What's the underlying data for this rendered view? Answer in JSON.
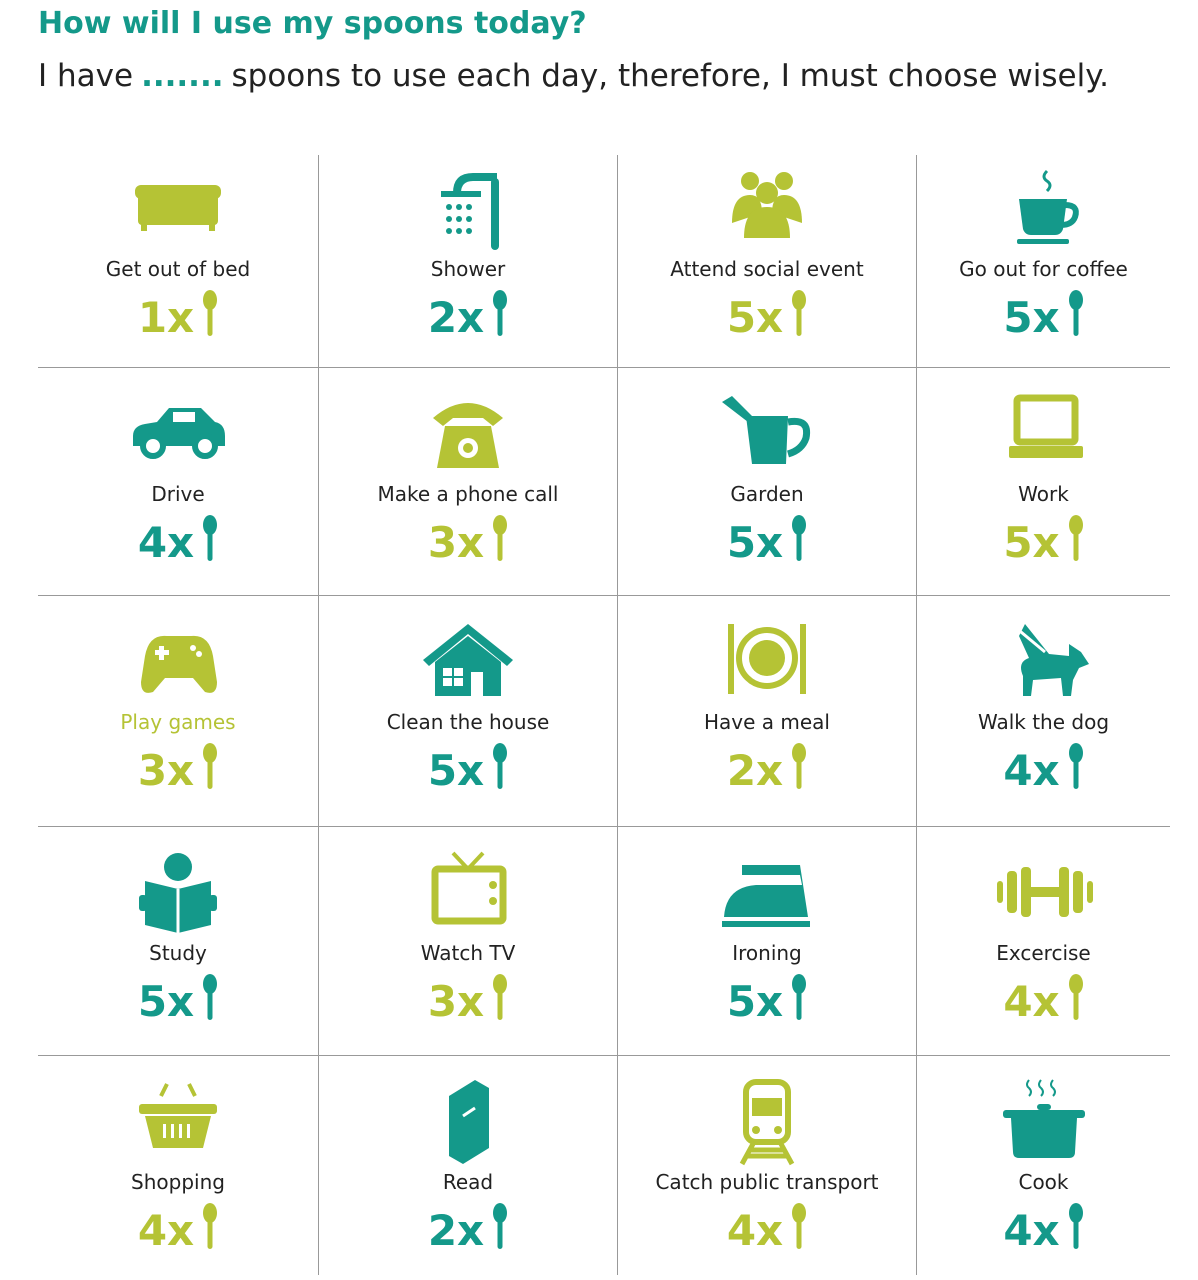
{
  "header": {
    "title": "How will I use my spoons today?",
    "subtitle_before": "I have",
    "blank": ".......",
    "subtitle_after": "spoons to use each day, therefore, I must choose wisely."
  },
  "items": [
    {
      "label": "Get out of bed",
      "count": "1x",
      "color": "#b5c335"
    },
    {
      "label": "Shower",
      "count": "2x",
      "color": "#14998a"
    },
    {
      "label": "Attend social event",
      "count": "5x",
      "color": "#b5c335"
    },
    {
      "label": "Go out for coffee",
      "count": "5x",
      "color": "#14998a"
    },
    {
      "label": "Drive",
      "count": "4x",
      "color": "#14998a"
    },
    {
      "label": "Make a phone call",
      "count": "3x",
      "color": "#b5c335"
    },
    {
      "label": "Garden",
      "count": "5x",
      "color": "#14998a"
    },
    {
      "label": "Work",
      "count": "5x",
      "color": "#b5c335"
    },
    {
      "label": "Play games",
      "count": "3x",
      "color": "#b5c335",
      "label_color": "#b5c335"
    },
    {
      "label": "Clean the house",
      "count": "5x",
      "color": "#14998a"
    },
    {
      "label": "Have a meal",
      "count": "2x",
      "color": "#b5c335"
    },
    {
      "label": "Walk the dog",
      "count": "4x",
      "color": "#14998a"
    },
    {
      "label": "Study",
      "count": "5x",
      "color": "#14998a"
    },
    {
      "label": "Watch TV",
      "count": "3x",
      "color": "#b5c335"
    },
    {
      "label": "Ironing",
      "count": "5x",
      "color": "#14998a"
    },
    {
      "label": "Excercise",
      "count": "4x",
      "color": "#b5c335"
    },
    {
      "label": "Shopping",
      "count": "4x",
      "color": "#b5c335"
    },
    {
      "label": "Read",
      "count": "2x",
      "color": "#14998a"
    },
    {
      "label": "Catch public transport",
      "count": "4x",
      "color": "#b5c335"
    },
    {
      "label": "Cook",
      "count": "4x",
      "color": "#14998a"
    }
  ]
}
